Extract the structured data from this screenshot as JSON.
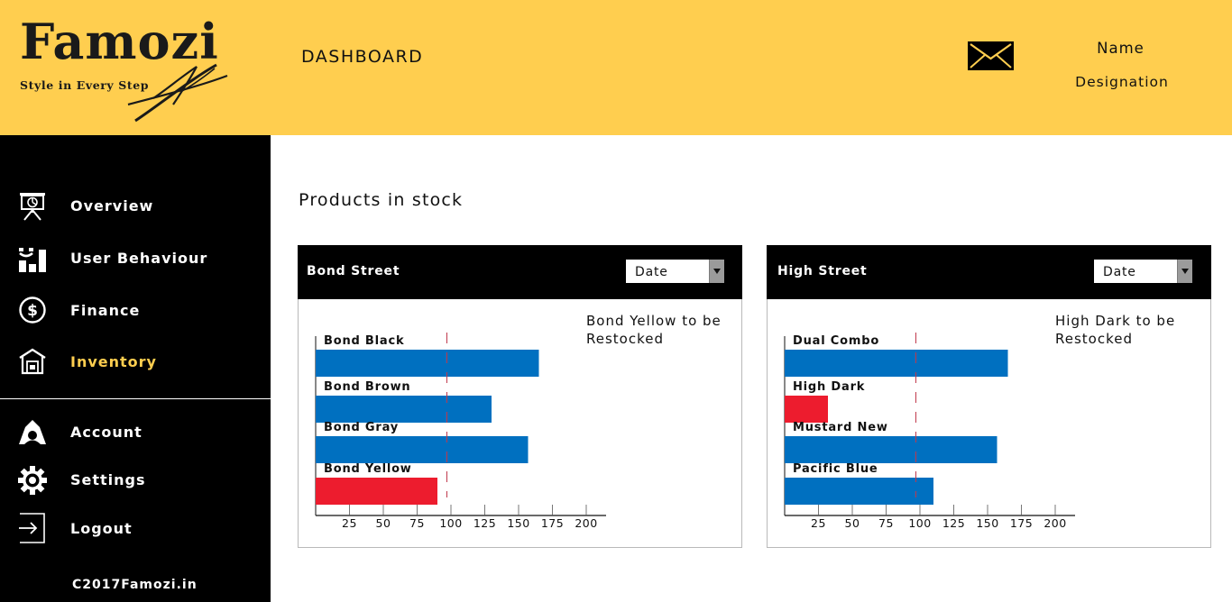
{
  "header": {
    "logo_text": "Famozi",
    "logo_tagline": "Style in Every Step",
    "title": "DASHBOARD",
    "mail_icon": "envelope-icon",
    "user_name": "Name",
    "user_designation": "Designation"
  },
  "sidebar": {
    "items": [
      {
        "label": "Overview",
        "icon": "presentation-board-icon",
        "active": false
      },
      {
        "label": "User Behaviour",
        "icon": "user-stats-icon",
        "active": false
      },
      {
        "label": "Finance",
        "icon": "dollar-circle-icon",
        "active": false
      },
      {
        "label": "Inventory",
        "icon": "warehouse-icon",
        "active": true
      }
    ],
    "bottom_items": [
      {
        "label": "Account",
        "icon": "account-icon"
      },
      {
        "label": "Settings",
        "icon": "gear-icon"
      },
      {
        "label": "Logout",
        "icon": "logout-icon"
      }
    ],
    "copyright": "C2017Famozi.in"
  },
  "main": {
    "section_title": "Products in stock",
    "cards": [
      {
        "title": "Bond Street",
        "filter_value": "Date",
        "restock_note": "Bond Yellow to be Restocked"
      },
      {
        "title": "High Street",
        "filter_value": "Date",
        "restock_note": "High Dark to be Restocked"
      }
    ]
  },
  "colors": {
    "header_bg": "#ffce4f",
    "sidebar_bg": "#000000",
    "active_nav": "#ffce4f",
    "bar_ok": "#0070c0",
    "bar_low": "#ed1c2e",
    "threshold_line": "#c0394b"
  },
  "chart_data": [
    {
      "type": "bar",
      "orientation": "horizontal",
      "categories": [
        "Bond Black",
        "Bond Brown",
        "Bond Gray",
        "Bond Yellow"
      ],
      "values": [
        165,
        130,
        157,
        90
      ],
      "low_stock": [
        false,
        false,
        false,
        true
      ],
      "threshold": 97,
      "x_ticks": [
        25,
        50,
        75,
        100,
        125,
        150,
        175,
        200
      ],
      "xlim": [
        0,
        215
      ]
    },
    {
      "type": "bar",
      "orientation": "horizontal",
      "categories": [
        "Dual Combo",
        "High Dark",
        "Mustard New",
        "Pacific Blue"
      ],
      "values": [
        165,
        32,
        157,
        110
      ],
      "low_stock": [
        false,
        true,
        false,
        false
      ],
      "threshold": 97,
      "x_ticks": [
        25,
        50,
        75,
        100,
        125,
        150,
        175,
        200
      ],
      "xlim": [
        0,
        215
      ]
    }
  ]
}
